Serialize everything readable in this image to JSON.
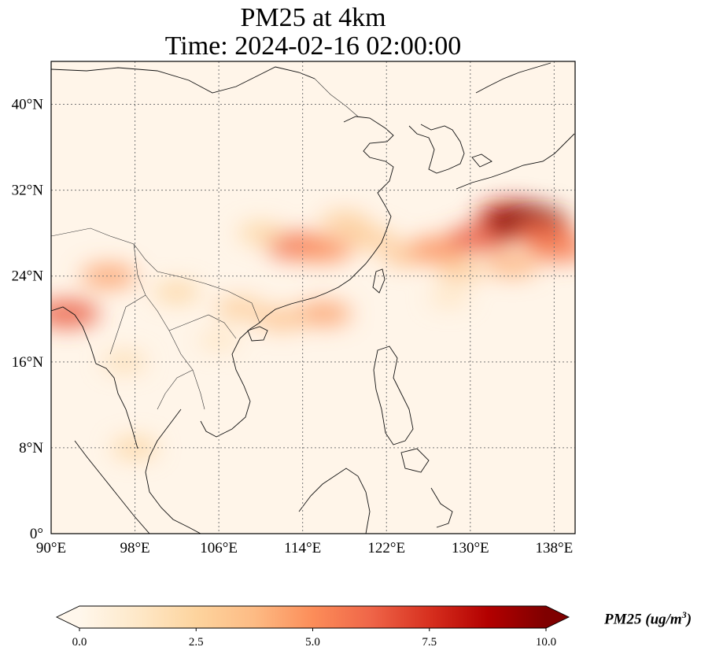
{
  "title": {
    "line1": "PM25 at 4km",
    "line2": "Time: 2024-02-16 02:00:00"
  },
  "map": {
    "projection": "PlateCarree",
    "lon_range": [
      90,
      140
    ],
    "lat_range": [
      0,
      44
    ],
    "lon_ticks": [
      {
        "value": 90,
        "label": "90°E"
      },
      {
        "value": 98,
        "label": "98°E"
      },
      {
        "value": 106,
        "label": "106°E"
      },
      {
        "value": 114,
        "label": "114°E"
      },
      {
        "value": 122,
        "label": "122°E"
      },
      {
        "value": 130,
        "label": "130°E"
      },
      {
        "value": 138,
        "label": "138°E"
      }
    ],
    "lat_ticks": [
      {
        "value": 0,
        "label": "0°"
      },
      {
        "value": 8,
        "label": "8°N"
      },
      {
        "value": 16,
        "label": "16°N"
      },
      {
        "value": 24,
        "label": "24°N"
      },
      {
        "value": 32,
        "label": "32°N"
      },
      {
        "value": 40,
        "label": "40°N"
      }
    ],
    "gridlines": "dotted gray",
    "field": "PM25",
    "plumes": [
      {
        "lon": 91.5,
        "lat": 20.5,
        "value": 6.5
      },
      {
        "lon": 95.5,
        "lat": 24.0,
        "value": 4.5
      },
      {
        "lon": 102,
        "lat": 22.5,
        "value": 2.5
      },
      {
        "lon": 108,
        "lat": 21.0,
        "value": 3.0
      },
      {
        "lon": 113.5,
        "lat": 26.8,
        "value": 6.0
      },
      {
        "lon": 116,
        "lat": 26.5,
        "value": 5.0
      },
      {
        "lon": 110,
        "lat": 28.0,
        "value": 2.5
      },
      {
        "lon": 118,
        "lat": 29.0,
        "value": 3.0
      },
      {
        "lon": 116,
        "lat": 20.5,
        "value": 4.5
      },
      {
        "lon": 112,
        "lat": 20.0,
        "value": 3.5
      },
      {
        "lon": 120.5,
        "lat": 27.5,
        "value": 3.0
      },
      {
        "lon": 124,
        "lat": 26.0,
        "value": 3.5
      },
      {
        "lon": 127,
        "lat": 26.5,
        "value": 5.0
      },
      {
        "lon": 131,
        "lat": 27.5,
        "value": 6.5
      },
      {
        "lon": 134,
        "lat": 29.5,
        "value": 8.0
      },
      {
        "lon": 135.5,
        "lat": 29.0,
        "value": 10.0
      },
      {
        "lon": 137,
        "lat": 28.0,
        "value": 6.0
      },
      {
        "lon": 138.5,
        "lat": 26.5,
        "value": 5.5
      },
      {
        "lon": 134,
        "lat": 25.0,
        "value": 4.0
      },
      {
        "lon": 129,
        "lat": 24.5,
        "value": 3.0
      },
      {
        "lon": 98,
        "lat": 8.0,
        "value": 2.5
      },
      {
        "lon": 97,
        "lat": 16.0,
        "value": 2.0
      },
      {
        "lon": 106,
        "lat": 18.0,
        "value": 1.5
      },
      {
        "lon": 128,
        "lat": 22.0,
        "value": 1.5
      }
    ]
  },
  "colorbar": {
    "colormap": "OrRd",
    "min": 0.0,
    "max": 10.0,
    "extend": "both",
    "ticks": [
      {
        "value": 0.0,
        "label": "0.0"
      },
      {
        "value": 2.5,
        "label": "2.5"
      },
      {
        "value": 5.0,
        "label": "5.0"
      },
      {
        "value": 7.5,
        "label": "7.5"
      },
      {
        "value": 10.0,
        "label": "10.0"
      }
    ],
    "label_main": "PM25 (ug/m",
    "label_sup": "3",
    "label_end": ")",
    "colors": [
      "#fff7ec",
      "#fee8c8",
      "#fdd49e",
      "#fdbb84",
      "#fc8d59",
      "#ef6548",
      "#d7301f",
      "#b30000",
      "#7f0000"
    ]
  }
}
